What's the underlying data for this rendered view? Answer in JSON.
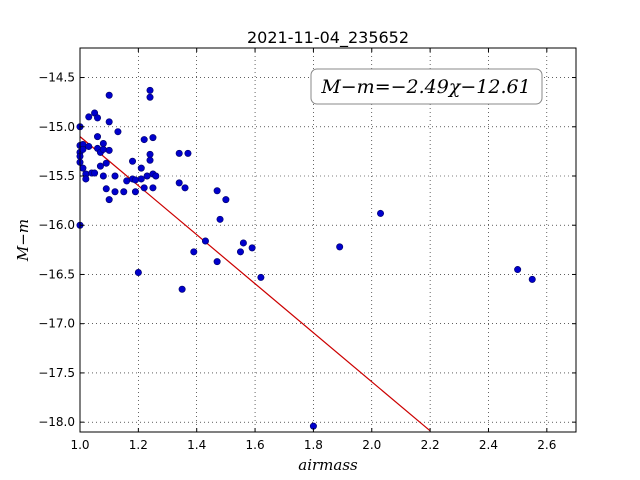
{
  "chart_data": {
    "type": "scatter",
    "title": "2021-11-04_235652",
    "xlabel": "airmass",
    "ylabel": "M−m",
    "annotation": "M−m=−2.49χ−12.61",
    "xlim": [
      1.0,
      2.7
    ],
    "ylim": [
      -18.1,
      -14.2
    ],
    "xticks": [
      1.0,
      1.2,
      1.4,
      1.6,
      1.8,
      2.0,
      2.2,
      2.4,
      2.6
    ],
    "xtick_labels": [
      "1.0",
      "1.2",
      "1.4",
      "1.6",
      "1.8",
      "2.0",
      "2.2",
      "2.4",
      "2.6"
    ],
    "yticks": [
      -14.5,
      -15.0,
      -15.5,
      -16.0,
      -16.5,
      -17.0,
      -17.5,
      -18.0
    ],
    "ytick_labels": [
      "−14.5",
      "−15.0",
      "−15.5",
      "−16.0",
      "−16.5",
      "−17.0",
      "−17.5",
      "−18.0"
    ],
    "grid": true,
    "colors": {
      "points": "#0000cc",
      "fit_line": "#cc0000"
    },
    "fit": {
      "slope": -2.49,
      "intercept": -12.61,
      "x_range": [
        1.0,
        2.2
      ]
    },
    "series": [
      {
        "points": [
          [
            1.0,
            -15.0
          ],
          [
            1.0,
            -15.19
          ],
          [
            1.0,
            -15.26
          ],
          [
            1.0,
            -15.3
          ],
          [
            1.0,
            -15.36
          ],
          [
            1.0,
            -16.0
          ],
          [
            1.01,
            -15.18
          ],
          [
            1.01,
            -15.23
          ],
          [
            1.01,
            -15.42
          ],
          [
            1.02,
            -15.48
          ],
          [
            1.02,
            -15.53
          ],
          [
            1.03,
            -14.9
          ],
          [
            1.03,
            -15.2
          ],
          [
            1.04,
            -15.47
          ],
          [
            1.05,
            -14.86
          ],
          [
            1.05,
            -15.47
          ],
          [
            1.06,
            -14.91
          ],
          [
            1.06,
            -15.1
          ],
          [
            1.06,
            -15.22
          ],
          [
            1.07,
            -15.26
          ],
          [
            1.07,
            -15.4
          ],
          [
            1.08,
            -15.17
          ],
          [
            1.08,
            -15.23
          ],
          [
            1.08,
            -15.5
          ],
          [
            1.09,
            -15.37
          ],
          [
            1.09,
            -15.63
          ],
          [
            1.1,
            -14.68
          ],
          [
            1.1,
            -14.95
          ],
          [
            1.1,
            -15.24
          ],
          [
            1.1,
            -15.74
          ],
          [
            1.12,
            -15.5
          ],
          [
            1.12,
            -15.66
          ],
          [
            1.13,
            -15.05
          ],
          [
            1.15,
            -15.66
          ],
          [
            1.16,
            -15.55
          ],
          [
            1.18,
            -15.35
          ],
          [
            1.18,
            -15.53
          ],
          [
            1.19,
            -15.54
          ],
          [
            1.19,
            -15.66
          ],
          [
            1.2,
            -16.48
          ],
          [
            1.21,
            -15.42
          ],
          [
            1.21,
            -15.53
          ],
          [
            1.22,
            -15.13
          ],
          [
            1.22,
            -15.62
          ],
          [
            1.23,
            -15.5
          ],
          [
            1.24,
            -14.63
          ],
          [
            1.24,
            -14.7
          ],
          [
            1.24,
            -15.28
          ],
          [
            1.24,
            -15.34
          ],
          [
            1.25,
            -15.11
          ],
          [
            1.25,
            -15.48
          ],
          [
            1.25,
            -15.62
          ],
          [
            1.26,
            -15.5
          ],
          [
            1.34,
            -15.27
          ],
          [
            1.34,
            -15.57
          ],
          [
            1.35,
            -16.65
          ],
          [
            1.36,
            -15.62
          ],
          [
            1.37,
            -15.27
          ],
          [
            1.39,
            -16.27
          ],
          [
            1.43,
            -16.16
          ],
          [
            1.47,
            -15.65
          ],
          [
            1.47,
            -16.37
          ],
          [
            1.48,
            -15.94
          ],
          [
            1.5,
            -15.74
          ],
          [
            1.55,
            -16.27
          ],
          [
            1.56,
            -16.18
          ],
          [
            1.59,
            -16.23
          ],
          [
            1.62,
            -16.53
          ],
          [
            1.8,
            -18.04
          ],
          [
            1.89,
            -16.22
          ],
          [
            2.03,
            -15.88
          ],
          [
            2.5,
            -16.45
          ],
          [
            2.55,
            -16.55
          ]
        ]
      }
    ]
  }
}
